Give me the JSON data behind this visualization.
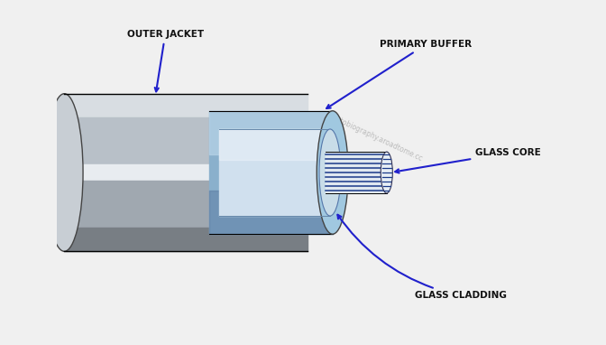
{
  "bg_color": "#f0f0f0",
  "labels": {
    "outer_jacket": "OUTER JACKET",
    "primary_buffer": "PRIMARY BUFFER",
    "glass_core": "GLASS CORE",
    "glass_cladding": "GLASS CLADDING"
  },
  "colors": {
    "outer_jacket_top": "#b0b8c0",
    "outer_jacket_side": "#8a9298",
    "outer_jacket_bottom": "#707880",
    "cladding_face": "#c8d8e8",
    "cladding_ring": "#a0b8cc",
    "buffer_outer": "#7090b0",
    "buffer_inner": "#90b8d0",
    "core_lines": "#1a3a8a",
    "core_bg": "#e8e8e8",
    "annotation_line": "#2020cc",
    "text_color": "#111111",
    "watermark": "#808080"
  },
  "figsize": [
    6.72,
    3.82
  ],
  "dpi": 100
}
